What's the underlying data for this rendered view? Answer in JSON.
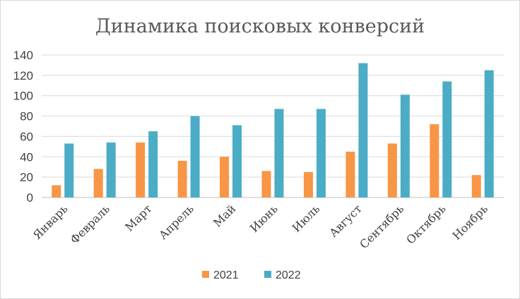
{
  "chart_data": {
    "type": "bar",
    "title": "Динамика поисковых конверсий",
    "xlabel": "",
    "ylabel": "",
    "ylim": [
      0,
      140
    ],
    "yticks": [
      0,
      20,
      40,
      60,
      80,
      100,
      120,
      140
    ],
    "grid": true,
    "legend_position": "bottom",
    "categories": [
      "Январь",
      "Февраль",
      "Март",
      "Апрель",
      "Май",
      "Июнь",
      "Июль",
      "Август",
      "Сентябрь",
      "Октябрь",
      "Ноябрь"
    ],
    "series": [
      {
        "name": "2021",
        "color": "#f79646",
        "values": [
          12,
          28,
          54,
          36,
          40,
          26,
          25,
          45,
          53,
          72,
          22
        ]
      },
      {
        "name": "2022",
        "color": "#4bacc6",
        "values": [
          53,
          54,
          65,
          80,
          71,
          87,
          87,
          132,
          101,
          114,
          125
        ]
      }
    ]
  }
}
